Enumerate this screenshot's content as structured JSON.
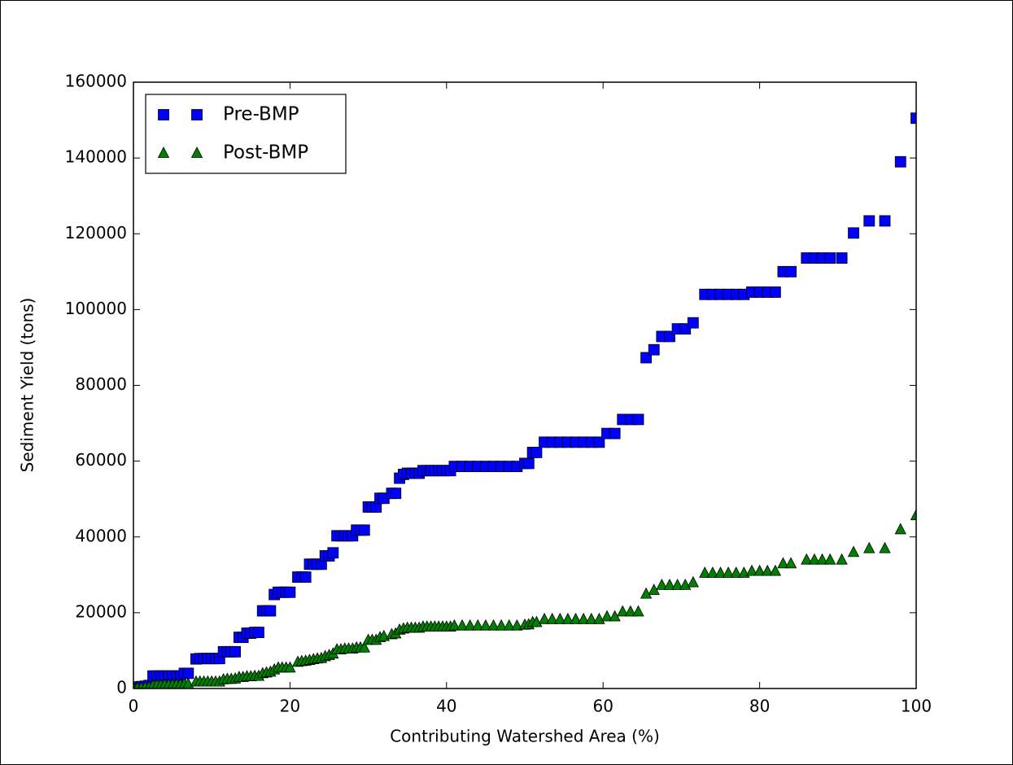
{
  "chart_data": {
    "type": "scatter",
    "x_label": "Contributing Watershed Area (%)",
    "y_label": "Sediment Yield (tons)",
    "x": [
      0,
      0.5,
      1,
      1.5,
      2,
      2.5,
      3,
      3.5,
      4,
      4.5,
      5,
      5.5,
      6,
      6.5,
      7,
      8,
      8.5,
      9,
      9.5,
      10,
      10.5,
      11,
      11.5,
      12,
      12.5,
      13,
      13.5,
      14,
      14.5,
      15,
      15.5,
      16,
      16.5,
      17,
      17.5,
      18,
      18.5,
      19,
      19.5,
      20,
      21,
      21.5,
      22,
      22.5,
      23,
      23.5,
      24,
      24.5,
      25,
      25.5,
      26,
      26.5,
      27,
      27.5,
      28,
      28.5,
      29,
      29.5,
      30,
      30.5,
      31,
      31.5,
      32,
      33,
      33.5,
      34,
      34.5,
      35,
      35.5,
      36,
      36.5,
      37,
      37.5,
      38,
      38.5,
      39,
      39.5,
      40,
      40.5,
      41,
      42,
      43,
      44,
      45,
      46,
      47,
      48,
      49,
      50,
      50.5,
      51,
      51.5,
      52.5,
      53.5,
      54.5,
      55.5,
      56.5,
      57.5,
      58.5,
      59.5,
      60.5,
      61.5,
      62.5,
      63.5,
      64.5,
      65.5,
      66.5,
      67.5,
      68.5,
      69.5,
      70.5,
      71.5,
      73,
      74,
      75,
      76,
      77,
      78,
      79,
      80,
      81,
      82,
      83,
      84,
      86,
      87,
      88,
      89,
      90.5,
      92,
      94,
      96,
      98,
      100
    ],
    "series": [
      {
        "name": "Pre-BMP",
        "color": "#0000ff",
        "marker": "square",
        "values": [
          300,
          400,
          500,
          600,
          800,
          3300,
          3300,
          3300,
          3300,
          3300,
          3300,
          3300,
          3300,
          4000,
          4000,
          7800,
          7900,
          7900,
          7900,
          7900,
          7900,
          7900,
          9700,
          9700,
          9700,
          9700,
          13500,
          13500,
          14600,
          14600,
          14800,
          14800,
          20500,
          20500,
          20500,
          24800,
          25400,
          25400,
          25400,
          25400,
          29400,
          29400,
          29400,
          32800,
          32800,
          32800,
          32800,
          35000,
          35000,
          35800,
          40300,
          40300,
          40300,
          40300,
          40300,
          41800,
          41800,
          41800,
          47900,
          47900,
          47900,
          50200,
          50200,
          51500,
          51500,
          55500,
          56500,
          56800,
          56800,
          56800,
          56800,
          57500,
          57500,
          57500,
          57500,
          57500,
          57500,
          57500,
          57500,
          58600,
          58600,
          58600,
          58600,
          58600,
          58600,
          58600,
          58600,
          58600,
          59400,
          59400,
          62300,
          62300,
          65000,
          65000,
          65000,
          65000,
          65000,
          65000,
          65000,
          65000,
          67300,
          67300,
          71000,
          71000,
          71000,
          87300,
          89400,
          92900,
          92900,
          94900,
          94900,
          96500,
          104000,
          104000,
          104000,
          104000,
          104000,
          104000,
          104600,
          104600,
          104600,
          104600,
          110000,
          110000,
          113600,
          113600,
          113600,
          113600,
          113600,
          120200,
          123400,
          123400,
          139000,
          150500
        ]
      },
      {
        "name": "Post-BMP",
        "color": "#008000",
        "marker": "triangle",
        "values": [
          100,
          150,
          200,
          300,
          400,
          800,
          900,
          900,
          1000,
          1000,
          1000,
          1100,
          1100,
          1200,
          1200,
          1800,
          1800,
          1800,
          1800,
          1800,
          1800,
          1800,
          2400,
          2500,
          2500,
          2600,
          3000,
          3000,
          3200,
          3200,
          3300,
          3300,
          4000,
          4200,
          4400,
          5000,
          5500,
          5500,
          5500,
          5500,
          7000,
          7200,
          7300,
          7500,
          7700,
          7900,
          8000,
          8500,
          8800,
          9200,
          10300,
          10300,
          10500,
          10500,
          10500,
          10800,
          10800,
          10800,
          12800,
          12800,
          12800,
          13500,
          13800,
          14300,
          14500,
          15500,
          15800,
          16000,
          16000,
          16000,
          16000,
          16300,
          16300,
          16300,
          16300,
          16300,
          16300,
          16300,
          16300,
          16600,
          16600,
          16600,
          16600,
          16600,
          16600,
          16600,
          16600,
          16600,
          16800,
          16900,
          17500,
          17500,
          18300,
          18300,
          18300,
          18300,
          18300,
          18300,
          18300,
          18300,
          19000,
          19000,
          20300,
          20300,
          20300,
          25000,
          26000,
          27300,
          27300,
          27300,
          27300,
          28000,
          30500,
          30500,
          30500,
          30500,
          30500,
          30500,
          31000,
          31000,
          31000,
          31000,
          33000,
          33000,
          34000,
          34000,
          34000,
          34000,
          34000,
          36000,
          37000,
          37000,
          42000,
          45700
        ]
      }
    ],
    "xlim": [
      0,
      100
    ],
    "xticks": [
      0,
      20,
      40,
      60,
      80,
      100
    ],
    "ylim": [
      0,
      160000
    ],
    "yticks": [
      0,
      20000,
      40000,
      60000,
      80000,
      100000,
      120000,
      140000,
      160000
    ],
    "grid": false,
    "legend": "upper left"
  }
}
